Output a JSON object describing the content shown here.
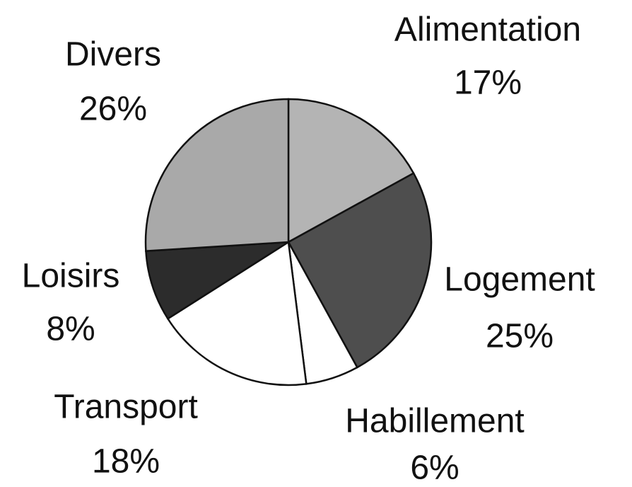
{
  "chart_data": {
    "type": "pie",
    "categories": [
      "Alimentation",
      "Logement",
      "Habillement",
      "Transport",
      "Loisirs",
      "Divers"
    ],
    "values": [
      17,
      25,
      6,
      18,
      8,
      26
    ],
    "value_labels": [
      "17%",
      "25%",
      "6%",
      "18%",
      "8%",
      "26%"
    ],
    "colors": [
      "#b4b4b4",
      "#4e4e4e",
      "#ffffff",
      "#ffffff",
      "#2c2c2c",
      "#a9a9a9"
    ]
  }
}
